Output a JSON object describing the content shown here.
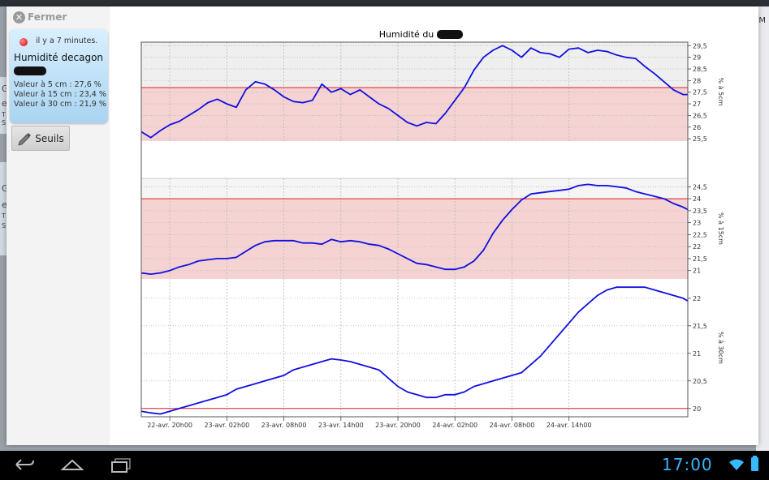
{
  "app": {
    "close_label": "Fermer",
    "time_ago": "il y a 7 minutes.",
    "sensor_name": "Humidité decagon",
    "values": [
      "Valeur à  5 cm : 27,6 %",
      "Valeur à  15 cm : 23,4 %",
      "Valeur à  30 cm : 21,9 %"
    ],
    "thresholds_label": "Seuils"
  },
  "background": {
    "right_tick": "M",
    "left_cards": [
      {
        "lines": [
          "G",
          "e",
          "T",
          "S"
        ]
      },
      {
        "lines": [
          "G",
          "e",
          "T",
          "S"
        ]
      }
    ]
  },
  "status_bar": {
    "clock": "17:00"
  },
  "chart_data": {
    "type": "line",
    "title": "Humidité du sol",
    "x_ticks": [
      "22-avr. 20h00",
      "23-avr. 02h00",
      "23-avr. 08h00",
      "23-avr. 14h00",
      "23-avr. 20h00",
      "24-avr. 02h00",
      "24-avr. 08h00",
      "24-avr. 14h00"
    ],
    "x_range": [
      0,
      57.5
    ],
    "x_tick_positions": [
      3,
      9,
      15,
      21,
      27,
      33,
      39,
      45
    ],
    "panels": [
      {
        "ylabel": "% à 5cm",
        "ylim": [
          25.4,
          29.65
        ],
        "yticks": [
          "25,5",
          "26",
          "26,5",
          "27",
          "27,5",
          "28",
          "28,5",
          "29",
          "29,5"
        ],
        "ytick_values": [
          25.5,
          26,
          26.5,
          27,
          27.5,
          28,
          28.5,
          29,
          29.5
        ],
        "threshold_line": 27.7,
        "threshold_band": [
          25.4,
          27.7
        ],
        "bg": "#efefef",
        "x": [
          0,
          1,
          2,
          3,
          4,
          5,
          6,
          7,
          8,
          9,
          10,
          11,
          12,
          13,
          14,
          15,
          16,
          17,
          18,
          19,
          20,
          21,
          22,
          23,
          24,
          25,
          26,
          27,
          28,
          29,
          30,
          31,
          32,
          33,
          34,
          35,
          36,
          37,
          38,
          39,
          40,
          41,
          42,
          43,
          44,
          45,
          46,
          47,
          48,
          49,
          50,
          51,
          52,
          53,
          54,
          55,
          56,
          57,
          57.5
        ],
        "values": [
          25.8,
          25.55,
          25.85,
          26.1,
          26.25,
          26.5,
          26.75,
          27.05,
          27.2,
          27.0,
          26.85,
          27.6,
          27.95,
          27.85,
          27.6,
          27.3,
          27.1,
          27.05,
          27.15,
          27.85,
          27.5,
          27.65,
          27.4,
          27.6,
          27.3,
          27.0,
          26.8,
          26.5,
          26.2,
          26.05,
          26.2,
          26.15,
          26.6,
          27.15,
          27.7,
          28.45,
          29.0,
          29.3,
          29.5,
          29.3,
          29.0,
          29.4,
          29.2,
          29.15,
          29.0,
          29.35,
          29.4,
          29.2,
          29.3,
          29.25,
          29.1,
          29.0,
          28.95,
          28.6,
          28.3,
          27.95,
          27.6,
          27.4,
          27.4
        ]
      },
      {
        "ylabel": "% à 15cm",
        "ylim": [
          20.65,
          24.85
        ],
        "yticks": [
          "21",
          "21,5",
          "22",
          "22,5",
          "23",
          "23,5",
          "24",
          "24,5"
        ],
        "ytick_values": [
          21,
          21.5,
          22,
          22.5,
          23,
          23.5,
          24,
          24.5
        ],
        "threshold_line": 24.0,
        "threshold_band": [
          20.65,
          24.0
        ],
        "bg": "#f5f5f5",
        "x": [
          0,
          1,
          2,
          3,
          4,
          5,
          6,
          7,
          8,
          9,
          10,
          11,
          12,
          13,
          14,
          15,
          16,
          17,
          18,
          19,
          20,
          21,
          22,
          23,
          24,
          25,
          26,
          27,
          28,
          29,
          30,
          31,
          32,
          33,
          34,
          35,
          36,
          37,
          38,
          39,
          40,
          41,
          42,
          43,
          44,
          45,
          46,
          47,
          48,
          49,
          50,
          51,
          52,
          53,
          54,
          55,
          56,
          57,
          57.5
        ],
        "values": [
          20.9,
          20.85,
          20.9,
          21.0,
          21.15,
          21.25,
          21.4,
          21.45,
          21.5,
          21.5,
          21.55,
          21.8,
          22.05,
          22.2,
          22.25,
          22.25,
          22.25,
          22.15,
          22.15,
          22.1,
          22.3,
          22.2,
          22.25,
          22.2,
          22.1,
          22.05,
          21.9,
          21.7,
          21.5,
          21.3,
          21.25,
          21.15,
          21.05,
          21.05,
          21.15,
          21.4,
          21.85,
          22.55,
          23.1,
          23.55,
          23.95,
          24.2,
          24.25,
          24.3,
          24.35,
          24.4,
          24.55,
          24.6,
          24.55,
          24.55,
          24.5,
          24.45,
          24.3,
          24.2,
          24.1,
          24.0,
          23.8,
          23.65,
          23.55
        ]
      },
      {
        "ylabel": "% à 30cm",
        "ylim": [
          19.85,
          22.35
        ],
        "yticks": [
          "20",
          "20,5",
          "21",
          "21,5",
          "22"
        ],
        "ytick_values": [
          20,
          20.5,
          21,
          21.5,
          22
        ],
        "threshold_line": 20.0,
        "threshold_band": null,
        "bg": "#ffffff",
        "x": [
          0,
          1,
          2,
          3,
          4,
          5,
          6,
          7,
          8,
          9,
          10,
          11,
          12,
          13,
          14,
          15,
          16,
          17,
          18,
          19,
          20,
          21,
          22,
          23,
          24,
          25,
          26,
          27,
          28,
          29,
          30,
          31,
          32,
          33,
          34,
          35,
          36,
          37,
          38,
          39,
          40,
          41,
          42,
          43,
          44,
          45,
          46,
          47,
          48,
          49,
          50,
          51,
          52,
          53,
          54,
          55,
          56,
          57,
          57.5
        ],
        "values": [
          19.95,
          19.92,
          19.9,
          19.95,
          20.0,
          20.05,
          20.1,
          20.15,
          20.2,
          20.25,
          20.35,
          20.4,
          20.45,
          20.5,
          20.55,
          20.6,
          20.7,
          20.75,
          20.8,
          20.85,
          20.9,
          20.88,
          20.85,
          20.8,
          20.75,
          20.7,
          20.55,
          20.4,
          20.3,
          20.25,
          20.2,
          20.2,
          20.25,
          20.25,
          20.3,
          20.4,
          20.45,
          20.5,
          20.55,
          20.6,
          20.65,
          20.8,
          20.95,
          21.15,
          21.35,
          21.55,
          21.75,
          21.9,
          22.05,
          22.15,
          22.2,
          22.2,
          22.2,
          22.2,
          22.15,
          22.1,
          22.05,
          22.0,
          21.95
        ]
      }
    ]
  }
}
